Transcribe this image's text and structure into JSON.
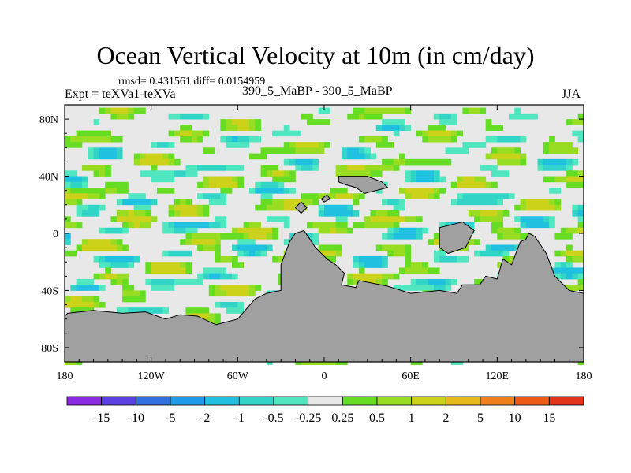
{
  "chart_data": {
    "type": "heatmap",
    "title": "Ocean Vertical Velocity at 10m (in cm/day)",
    "stats_label": "rmsd= 0.431561 diff= 0.0154959",
    "experiment_label": "Expt = teXVa1-teXVa",
    "case_label": "390_5_MaBP - 390_5_MaBP",
    "season_label": "JJA",
    "x_axis": {
      "range": [
        -180,
        180
      ],
      "tick_values": [
        -180,
        -120,
        -60,
        0,
        60,
        120,
        180
      ],
      "tick_labels": [
        "180",
        "120W",
        "60W",
        "0",
        "60E",
        "120E",
        "180"
      ]
    },
    "y_axis": {
      "range": [
        -90,
        90
      ],
      "tick_values": [
        80,
        40,
        0,
        -40,
        -80
      ],
      "tick_labels": [
        "80N",
        "40N",
        "0",
        "40S",
        "80S"
      ]
    },
    "colorbar": {
      "boundary_labels": [
        "-15",
        "-10",
        "-5",
        "-2",
        "-1",
        "-0.5",
        "-0.25",
        "0.25",
        "0.5",
        "1",
        "2",
        "5",
        "10",
        "15"
      ],
      "colors": [
        "#8a2be2",
        "#5b3fe0",
        "#2f6fe0",
        "#1e9be8",
        "#20c0e0",
        "#33d4c8",
        "#50e6c0",
        "#e8e8e8",
        "#66dd22",
        "#99dd22",
        "#ccd21a",
        "#e6b81a",
        "#ee7f1a",
        "#ee5a15",
        "#e2331a"
      ]
    },
    "land_color": "#a0a0a0"
  }
}
